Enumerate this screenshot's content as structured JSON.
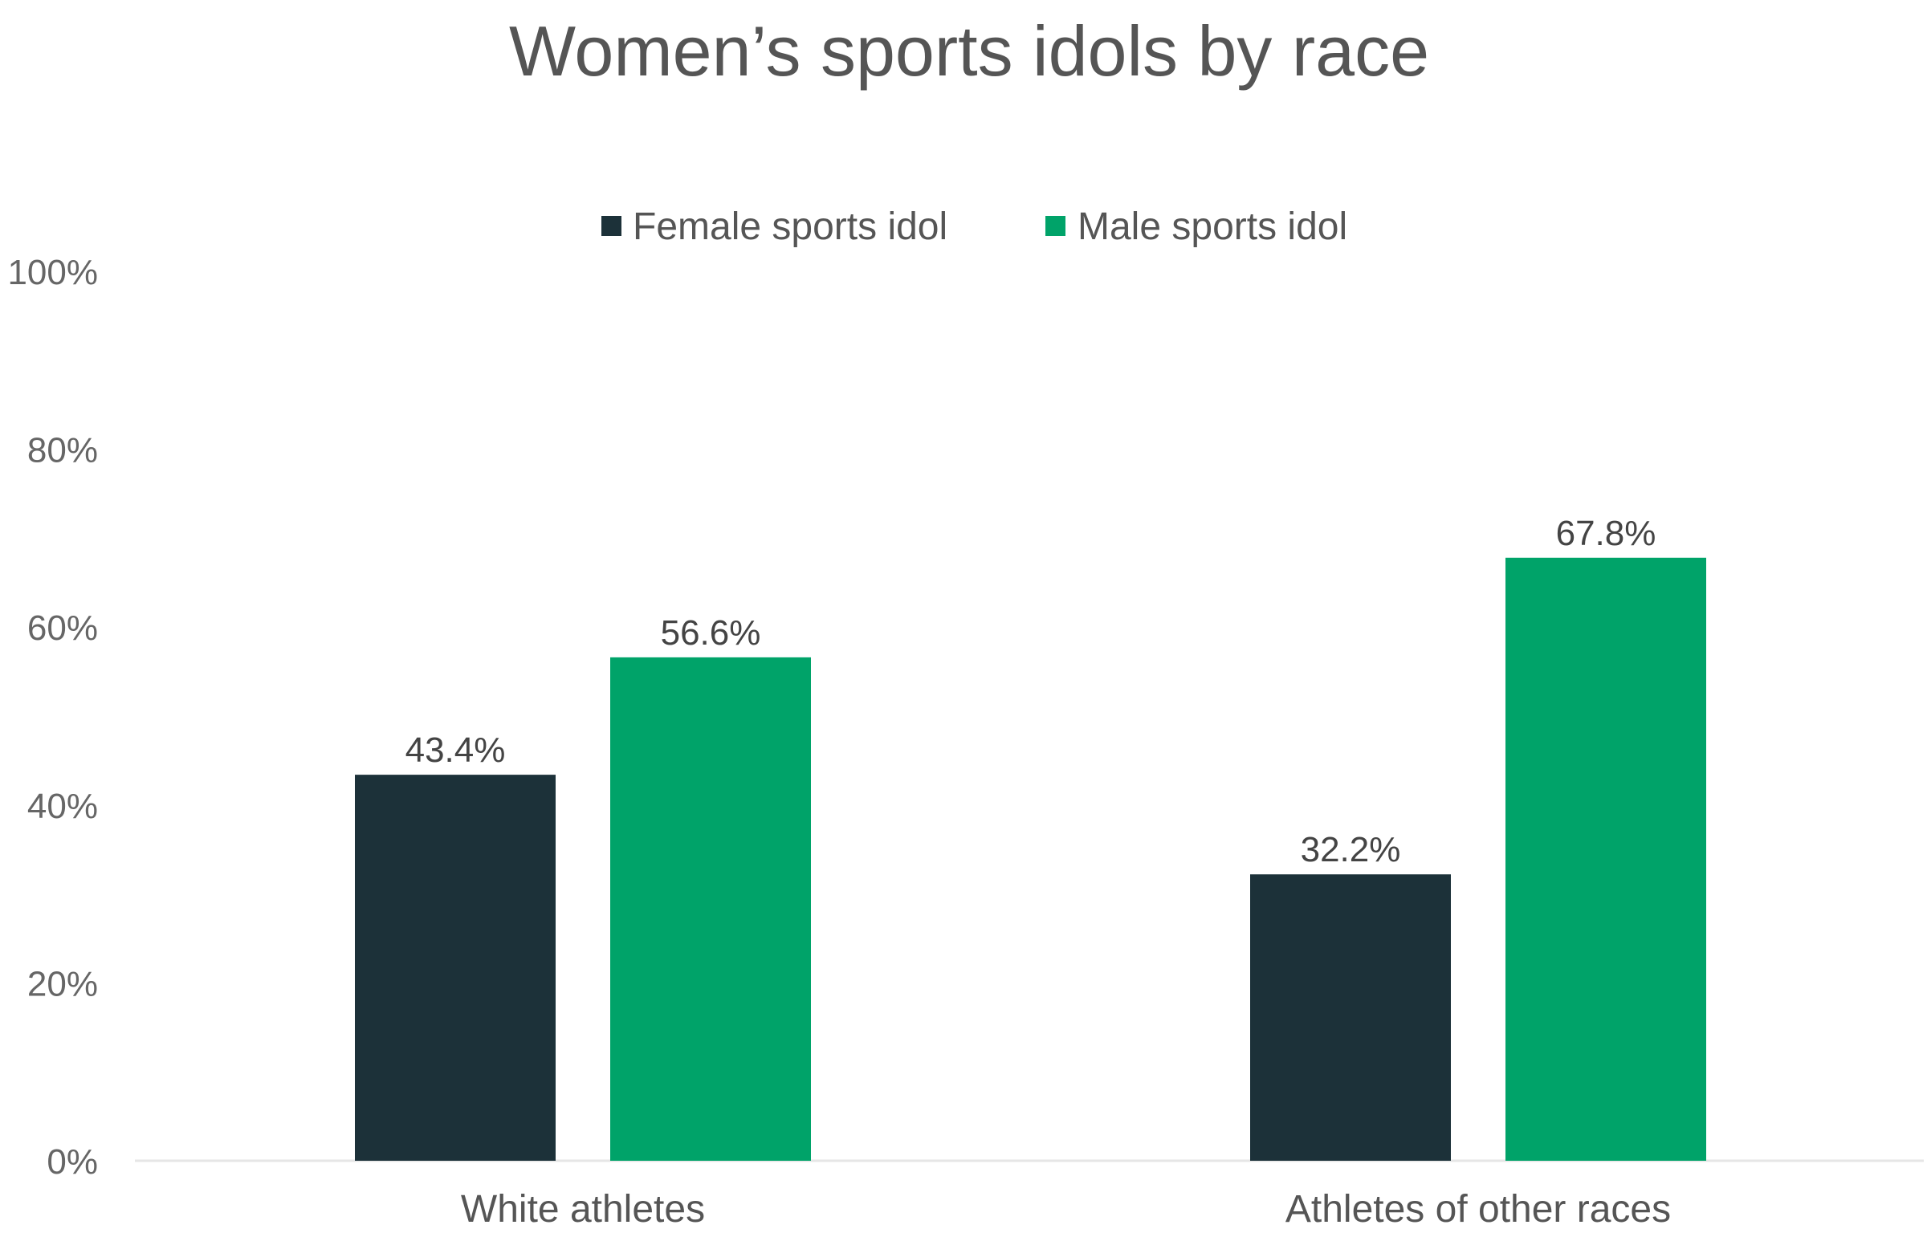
{
  "chart_data": {
    "type": "bar",
    "title": "Women’s sports idols by race",
    "categories": [
      "White athletes",
      "Athletes of other races"
    ],
    "series": [
      {
        "name": "Female sports idol",
        "values": [
          43.4,
          32.2
        ],
        "labels": [
          "43.4%",
          "32.2%"
        ],
        "color": "#1c3139"
      },
      {
        "name": "Male sports idol",
        "values": [
          56.6,
          67.8
        ],
        "labels": [
          "56.6%",
          "67.8%"
        ],
        "color": "#00a369"
      }
    ],
    "y_ticks": [
      {
        "value": 0,
        "label": "0%"
      },
      {
        "value": 20,
        "label": "20%"
      },
      {
        "value": 40,
        "label": "40%"
      },
      {
        "value": 60,
        "label": "60%"
      },
      {
        "value": 80,
        "label": "80%"
      },
      {
        "value": 100,
        "label": "100%"
      }
    ],
    "ylim": [
      0,
      100
    ],
    "grid": false,
    "legend": "top-center",
    "axis_color": "#e6e6e6"
  }
}
